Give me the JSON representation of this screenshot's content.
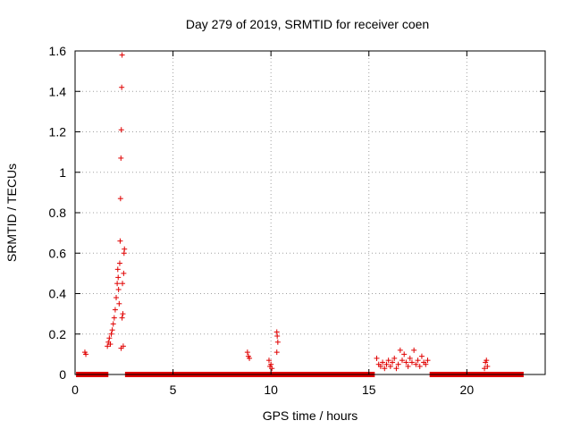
{
  "chart_data": {
    "type": "scatter",
    "title": "Day 279 of 2019, SRMTID for receiver coen",
    "xlabel": "GPS time / hours",
    "ylabel": "SRMTID / TECUs",
    "xlim": [
      0,
      24
    ],
    "ylim": [
      0,
      1.6
    ],
    "x_ticks": [
      0,
      5,
      10,
      15,
      20
    ],
    "y_ticks": [
      0,
      0.2,
      0.4,
      0.6,
      0.8,
      1,
      1.2,
      1.4,
      1.6
    ],
    "x_tick_labels": [
      "0",
      "5",
      "10",
      "15",
      "20"
    ],
    "y_tick_labels": [
      "0",
      "0.2",
      "0.4",
      "0.6",
      "0.8",
      "1",
      "1.2",
      "1.4",
      "1.6"
    ],
    "grid": true,
    "legend": "none",
    "marker": "plus",
    "color": "#e00000",
    "baseline_segments": [
      {
        "x_start": 0.05,
        "x_end": 1.7,
        "y": 0
      },
      {
        "x_start": 2.55,
        "x_end": 15.3,
        "y": 0
      },
      {
        "x_start": 18.1,
        "x_end": 22.9,
        "y": 0
      }
    ],
    "points": [
      [
        0.5,
        0.11
      ],
      [
        0.55,
        0.1
      ],
      [
        1.65,
        0.14
      ],
      [
        1.7,
        0.16
      ],
      [
        1.75,
        0.18
      ],
      [
        1.8,
        0.15
      ],
      [
        1.85,
        0.2
      ],
      [
        1.9,
        0.22
      ],
      [
        1.95,
        0.25
      ],
      [
        2.0,
        0.28
      ],
      [
        2.05,
        0.32
      ],
      [
        2.1,
        0.38
      ],
      [
        2.15,
        0.45
      ],
      [
        2.18,
        0.52
      ],
      [
        2.2,
        0.48
      ],
      [
        2.22,
        0.42
      ],
      [
        2.25,
        0.35
      ],
      [
        2.28,
        0.55
      ],
      [
        2.3,
        0.66
      ],
      [
        2.32,
        0.87
      ],
      [
        2.34,
        1.07
      ],
      [
        2.36,
        1.21
      ],
      [
        2.38,
        1.42
      ],
      [
        2.4,
        1.58
      ],
      [
        2.42,
        0.45
      ],
      [
        2.44,
        0.3
      ],
      [
        2.46,
        0.14
      ],
      [
        2.48,
        0.5
      ],
      [
        2.5,
        0.6
      ],
      [
        2.52,
        0.62
      ],
      [
        2.35,
        0.13
      ],
      [
        2.4,
        0.28
      ],
      [
        8.8,
        0.11
      ],
      [
        8.85,
        0.09
      ],
      [
        8.9,
        0.08
      ],
      [
        9.9,
        0.07
      ],
      [
        9.95,
        0.04
      ],
      [
        10.0,
        0.05
      ],
      [
        10.05,
        0.03
      ],
      [
        10.3,
        0.21
      ],
      [
        10.32,
        0.19
      ],
      [
        10.35,
        0.16
      ],
      [
        10.3,
        0.11
      ],
      [
        15.4,
        0.08
      ],
      [
        15.5,
        0.05
      ],
      [
        15.6,
        0.04
      ],
      [
        15.7,
        0.06
      ],
      [
        15.8,
        0.03
      ],
      [
        15.9,
        0.05
      ],
      [
        16.0,
        0.07
      ],
      [
        16.1,
        0.04
      ],
      [
        16.2,
        0.06
      ],
      [
        16.3,
        0.08
      ],
      [
        16.4,
        0.03
      ],
      [
        16.5,
        0.05
      ],
      [
        16.6,
        0.12
      ],
      [
        16.7,
        0.07
      ],
      [
        16.8,
        0.1
      ],
      [
        16.9,
        0.06
      ],
      [
        17.0,
        0.04
      ],
      [
        17.1,
        0.08
      ],
      [
        17.2,
        0.06
      ],
      [
        17.3,
        0.12
      ],
      [
        17.4,
        0.05
      ],
      [
        17.5,
        0.07
      ],
      [
        17.6,
        0.04
      ],
      [
        17.7,
        0.09
      ],
      [
        17.8,
        0.06
      ],
      [
        17.9,
        0.05
      ],
      [
        18.0,
        0.07
      ],
      [
        20.9,
        0.03
      ],
      [
        20.95,
        0.06
      ],
      [
        21.0,
        0.07
      ],
      [
        21.05,
        0.04
      ]
    ]
  }
}
